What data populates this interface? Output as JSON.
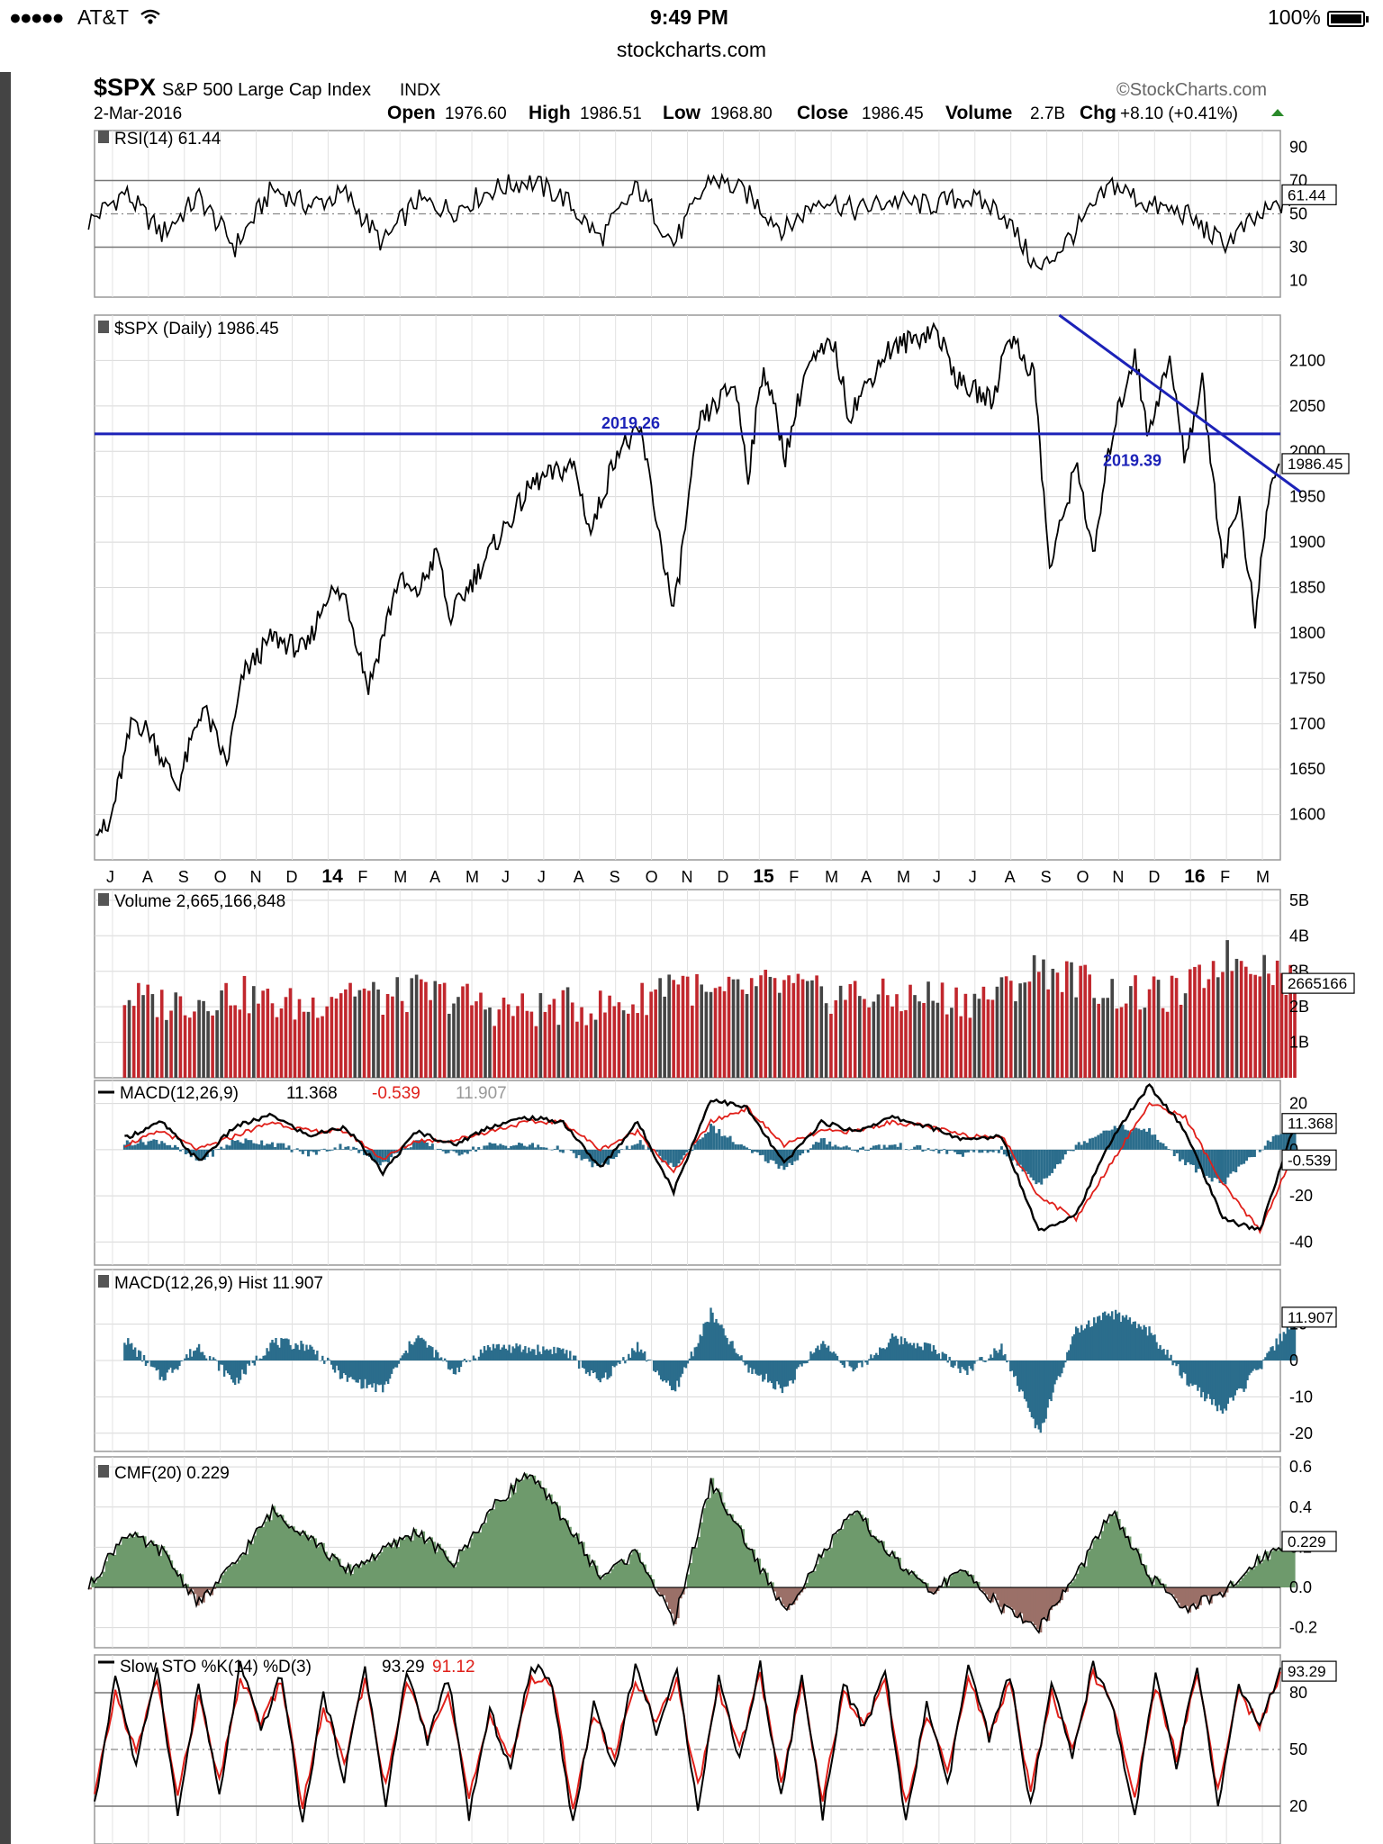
{
  "status_bar": {
    "carrier": "AT&T",
    "time": "9:49 PM",
    "battery": "100%"
  },
  "browser": {
    "url": "stockcharts.com"
  },
  "chart_header": {
    "symbol": "$SPX",
    "name": "S&P 500 Large Cap Index",
    "exchange": "INDX",
    "watermark": "©StockCharts.com",
    "date": "2-Mar-2016",
    "open_label": "Open",
    "open": "1976.60",
    "high_label": "High",
    "high": "1986.51",
    "low_label": "Low",
    "low": "1968.80",
    "close_label": "Close",
    "close": "1986.45",
    "volume_label": "Volume",
    "volume": "2.7B",
    "chg_label": "Chg",
    "chg": "+8.10 (+0.41%)"
  },
  "chart_data": [
    {
      "type": "line",
      "panel": "rsi",
      "title": "RSI(14) 61.44",
      "last_value": "61.44",
      "ylim": [
        0,
        100
      ],
      "ticks": [
        "90",
        "70",
        "50",
        "30",
        "10"
      ],
      "tick_values": [
        90,
        70,
        50,
        30,
        10
      ],
      "reference_lines": [
        70,
        30
      ],
      "midline": 50,
      "x": [
        "2013-06",
        "2013-07",
        "2013-08",
        "2013-09",
        "2013-10",
        "2013-11",
        "2013-12",
        "2014-01",
        "2014-02",
        "2014-03",
        "2014-04",
        "2014-05",
        "2014-06",
        "2014-07",
        "2014-08",
        "2014-09",
        "2014-10",
        "2014-11",
        "2014-12",
        "2015-01",
        "2015-02",
        "2015-03",
        "2015-04",
        "2015-05",
        "2015-06",
        "2015-07",
        "2015-08",
        "2015-09",
        "2015-10",
        "2015-11",
        "2015-12",
        "2016-01",
        "2016-02",
        "2016-03"
      ],
      "values": [
        45,
        63,
        38,
        60,
        30,
        65,
        55,
        62,
        32,
        58,
        52,
        64,
        70,
        60,
        35,
        66,
        32,
        72,
        62,
        40,
        60,
        52,
        58,
        55,
        60,
        52,
        15,
        40,
        68,
        55,
        50,
        32,
        48,
        61.44
      ]
    },
    {
      "type": "line",
      "panel": "price",
      "title": "$SPX (Daily) 1986.45",
      "last_value": "1986.45",
      "ylim": [
        1550,
        2150
      ],
      "ticks": [
        "2100",
        "2050",
        "2000",
        "1950",
        "1900",
        "1850",
        "1800",
        "1750",
        "1700",
        "1650",
        "1600"
      ],
      "tick_values": [
        2100,
        2050,
        2000,
        1950,
        1900,
        1850,
        1800,
        1750,
        1700,
        1650,
        1600
      ],
      "x_tick_labels": [
        "J",
        "A",
        "S",
        "O",
        "N",
        "D",
        "14",
        "F",
        "M",
        "A",
        "M",
        "J",
        "J",
        "A",
        "S",
        "O",
        "N",
        "D",
        "15",
        "F",
        "M",
        "A",
        "M",
        "J",
        "J",
        "A",
        "S",
        "O",
        "N",
        "D",
        "16",
        "F",
        "M"
      ],
      "x": [
        "2013-06-21",
        "2013-07-01",
        "2013-07-22",
        "2013-08-05",
        "2013-08-28",
        "2013-09-18",
        "2013-10-08",
        "2013-10-22",
        "2013-11-15",
        "2013-12-13",
        "2013-12-31",
        "2014-01-15",
        "2014-02-03",
        "2014-02-28",
        "2014-03-14",
        "2014-04-02",
        "2014-04-11",
        "2014-05-20",
        "2014-06-20",
        "2014-07-24",
        "2014-08-07",
        "2014-08-29",
        "2014-09-18",
        "2014-10-15",
        "2014-11-05",
        "2014-12-05",
        "2014-12-16",
        "2014-12-29",
        "2015-01-16",
        "2015-02-02",
        "2015-02-25",
        "2015-03-10",
        "2015-04-10",
        "2015-05-21",
        "2015-06-10",
        "2015-07-08",
        "2015-07-20",
        "2015-08-11",
        "2015-08-24",
        "2015-09-16",
        "2015-09-29",
        "2015-10-15",
        "2015-11-03",
        "2015-11-13",
        "2015-12-02",
        "2015-12-14",
        "2015-12-29",
        "2016-01-15",
        "2016-01-29",
        "2016-02-11",
        "2016-02-22",
        "2016-03-02"
      ],
      "values": [
        1590,
        1580,
        1705,
        1690,
        1630,
        1720,
        1655,
        1755,
        1795,
        1780,
        1845,
        1840,
        1740,
        1860,
        1840,
        1890,
        1815,
        1900,
        1965,
        1985,
        1910,
        2002,
        2020,
        1820,
        2030,
        2075,
        1975,
        2095,
        1995,
        2090,
        2120,
        2040,
        2110,
        2135,
        2075,
        2055,
        2130,
        2085,
        1870,
        1990,
        1880,
        2020,
        2110,
        2020,
        2100,
        1995,
        2075,
        1880,
        1945,
        1810,
        1950,
        1986.45
      ],
      "annotations": [
        {
          "label": "2019.26",
          "y": 2019.26
        },
        {
          "label": "2019.39",
          "y": 2019.39
        }
      ],
      "trendline": {
        "x": [
          "2015-09-01",
          "2016-03-20"
        ],
        "y": [
          2150,
          1955
        ]
      }
    },
    {
      "type": "bar",
      "panel": "volume",
      "title": "Volume 2,665,166,848",
      "last_value": "2665166",
      "ylim": [
        0,
        5.3
      ],
      "ticks": [
        "5B",
        "4B",
        "3B",
        "2B",
        "1B"
      ],
      "tick_values": [
        5,
        4,
        3,
        2,
        1
      ],
      "x": [
        "2013-07",
        "2013-08",
        "2013-09",
        "2013-10",
        "2013-11",
        "2013-12",
        "2014-01",
        "2014-02",
        "2014-03",
        "2014-04",
        "2014-05",
        "2014-06",
        "2014-07",
        "2014-08",
        "2014-09",
        "2014-10",
        "2014-11",
        "2014-12",
        "2015-01",
        "2015-02",
        "2015-03",
        "2015-04",
        "2015-05",
        "2015-06",
        "2015-07",
        "2015-08",
        "2015-09",
        "2015-10",
        "2015-11",
        "2015-12",
        "2016-01",
        "2016-02",
        "2016-03"
      ],
      "values": [
        2.3,
        2.1,
        2.2,
        2.4,
        2.1,
        2.0,
        2.6,
        2.2,
        2.4,
        2.3,
        2.0,
        1.9,
        2.0,
        2.0,
        2.1,
        2.9,
        2.2,
        2.5,
        2.6,
        2.3,
        2.4,
        2.2,
        2.3,
        2.2,
        2.4,
        3.1,
        2.8,
        2.4,
        2.3,
        2.4,
        3.4,
        3.3,
        2.7
      ]
    },
    {
      "type": "line",
      "panel": "macd",
      "title": "MACD(12,26,9)",
      "macd_value": "11.368",
      "signal_value": "-0.539",
      "hist_value": "11.907",
      "ylim": [
        -50,
        30
      ],
      "ticks": [
        "20",
        "0",
        "-20",
        "-40"
      ],
      "tick_values": [
        20,
        0,
        -20,
        -40
      ],
      "x": [
        "2013-07",
        "2013-08",
        "2013-09",
        "2013-10",
        "2013-11",
        "2013-12",
        "2014-01",
        "2014-02",
        "2014-03",
        "2014-04",
        "2014-05",
        "2014-06",
        "2014-07",
        "2014-08",
        "2014-09",
        "2014-10",
        "2014-11",
        "2014-12",
        "2015-01",
        "2015-02",
        "2015-03",
        "2015-04",
        "2015-05",
        "2015-06",
        "2015-07",
        "2015-08",
        "2015-09",
        "2015-10",
        "2015-11",
        "2015-12",
        "2016-01",
        "2016-02",
        "2016-03"
      ],
      "series": [
        {
          "name": "MACD",
          "values": [
            5,
            12,
            -5,
            10,
            15,
            6,
            10,
            -10,
            8,
            2,
            10,
            14,
            12,
            -8,
            12,
            -18,
            22,
            18,
            -6,
            12,
            8,
            14,
            10,
            4,
            6,
            -35,
            -28,
            5,
            28,
            8,
            -30,
            -35,
            11.368
          ]
        },
        {
          "name": "Signal",
          "values": [
            2,
            8,
            0,
            6,
            12,
            8,
            8,
            -4,
            4,
            4,
            8,
            12,
            12,
            0,
            8,
            -10,
            12,
            18,
            2,
            8,
            8,
            12,
            10,
            6,
            6,
            -20,
            -30,
            -5,
            20,
            14,
            -15,
            -35,
            -0.539
          ]
        }
      ]
    },
    {
      "type": "bar",
      "panel": "macd_hist",
      "title": "MACD(12,26,9) Hist 11.907",
      "last_value": "11.907",
      "ylim": [
        -25,
        25
      ],
      "ticks": [
        "10",
        "0",
        "-10",
        "-20"
      ],
      "tick_values": [
        10,
        0,
        -10,
        -20
      ],
      "x": [
        "2013-07",
        "2013-08",
        "2013-09",
        "2013-10",
        "2013-11",
        "2013-12",
        "2014-01",
        "2014-02",
        "2014-03",
        "2014-04",
        "2014-05",
        "2014-06",
        "2014-07",
        "2014-08",
        "2014-09",
        "2014-10",
        "2014-11",
        "2014-12",
        "2015-01",
        "2015-02",
        "2015-03",
        "2015-04",
        "2015-05",
        "2015-06",
        "2015-07",
        "2015-08",
        "2015-09",
        "2015-10",
        "2015-11",
        "2015-12",
        "2016-01",
        "2016-02",
        "2016-03"
      ],
      "values": [
        6,
        -5,
        4,
        -6,
        5,
        4,
        -5,
        -8,
        7,
        -3,
        4,
        3,
        3,
        -6,
        4,
        -9,
        13,
        -2,
        -8,
        5,
        -3,
        6,
        4,
        -3,
        4,
        -20,
        8,
        13,
        8,
        -5,
        -14,
        -2,
        11.907
      ]
    },
    {
      "type": "area",
      "panel": "cmf",
      "title": "CMF(20) 0.229",
      "last_value": "0.229",
      "ylim": [
        -0.3,
        0.65
      ],
      "ticks": [
        "0.6",
        "0.4",
        "0.2",
        "0.0",
        "-0.2"
      ],
      "tick_values": [
        0.6,
        0.4,
        0.2,
        0,
        -0.2
      ],
      "x": [
        "2013-06",
        "2013-07",
        "2013-08",
        "2013-09",
        "2013-10",
        "2013-11",
        "2013-12",
        "2014-01",
        "2014-02",
        "2014-03",
        "2014-04",
        "2014-05",
        "2014-06",
        "2014-07",
        "2014-08",
        "2014-09",
        "2014-10",
        "2014-11",
        "2014-12",
        "2015-01",
        "2015-02",
        "2015-03",
        "2015-04",
        "2015-05",
        "2015-06",
        "2015-07",
        "2015-08",
        "2015-09",
        "2015-10",
        "2015-11",
        "2015-12",
        "2016-01",
        "2016-02",
        "2016-03"
      ],
      "values": [
        0.0,
        0.27,
        0.18,
        -0.08,
        0.12,
        0.38,
        0.26,
        0.08,
        0.18,
        0.28,
        0.12,
        0.38,
        0.57,
        0.35,
        0.05,
        0.18,
        -0.18,
        0.52,
        0.22,
        -0.12,
        0.16,
        0.38,
        0.15,
        -0.02,
        0.08,
        -0.1,
        -0.2,
        0.06,
        0.38,
        0.05,
        -0.1,
        -0.04,
        0.15,
        0.229
      ]
    },
    {
      "type": "line",
      "panel": "stochastic",
      "title": "Slow STO %K(14) %D(3)",
      "k_value": "93.29",
      "d_value": "91.12",
      "ylim": [
        0,
        100
      ],
      "ticks": [
        "80",
        "50",
        "20"
      ],
      "tick_values": [
        80,
        50,
        20
      ],
      "reference_lines": [
        80,
        20
      ],
      "midline": 50,
      "series": [
        {
          "name": "%K",
          "values": [
            20,
            90,
            40,
            95,
            15,
            85,
            25,
            95,
            60,
            90,
            10,
            80,
            35,
            95,
            20,
            92,
            55,
            88,
            15,
            70,
            40,
            95,
            85,
            10,
            75,
            40,
            95,
            60,
            90,
            20,
            88,
            45,
            95,
            25,
            90,
            15,
            85,
            60,
            92,
            10,
            75,
            30,
            95,
            55,
            90,
            20,
            85,
            45,
            95,
            70,
            15,
            90,
            40,
            95,
            20,
            85,
            60,
            93.29
          ]
        },
        {
          "name": "%D",
          "values": [
            25,
            80,
            48,
            88,
            25,
            78,
            32,
            88,
            64,
            86,
            20,
            72,
            42,
            88,
            30,
            86,
            58,
            82,
            24,
            66,
            46,
            88,
            84,
            20,
            68,
            46,
            88,
            64,
            86,
            30,
            82,
            50,
            90,
            32,
            84,
            24,
            80,
            62,
            88,
            20,
            68,
            38,
            88,
            58,
            86,
            28,
            80,
            50,
            90,
            72,
            24,
            84,
            46,
            90,
            28,
            80,
            62,
            91.12
          ]
        }
      ]
    }
  ]
}
